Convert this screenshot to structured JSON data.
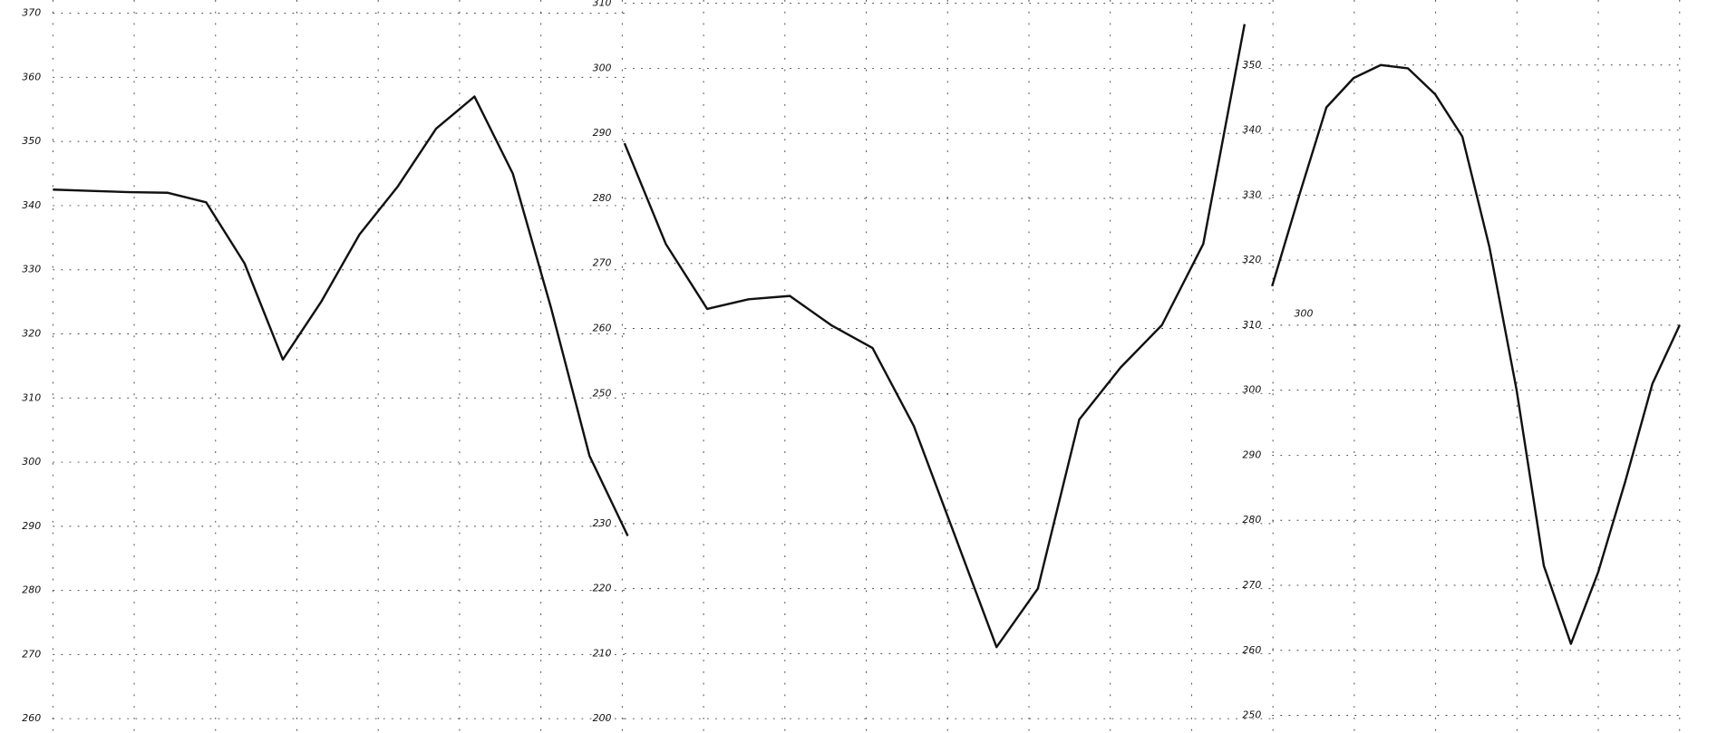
{
  "chart_data": [
    {
      "type": "line",
      "ylim": [
        260,
        370
      ],
      "yticks": [
        370,
        360,
        350,
        340,
        330,
        320,
        310,
        300,
        290,
        280,
        270,
        260
      ],
      "grid": true,
      "color": "#111111",
      "values": [
        342.5,
        342.3,
        342.1,
        342,
        340.5,
        331,
        316,
        325,
        335.5,
        343,
        352,
        357,
        345,
        324,
        301,
        288.5
      ]
    },
    {
      "type": "line",
      "ylim": [
        200,
        310
      ],
      "yticks": [
        310,
        300,
        290,
        280,
        270,
        260,
        250,
        230,
        220,
        210,
        200
      ],
      "grid": true,
      "color": "#111111",
      "values": [
        288.5,
        273,
        263,
        264.5,
        265,
        260.5,
        257,
        245,
        228,
        211,
        220,
        246,
        254,
        260.5,
        273,
        306.8
      ]
    },
    {
      "type": "line",
      "ylim": [
        250,
        360
      ],
      "yticks": [
        350,
        340,
        330,
        320,
        310,
        300,
        290,
        280,
        270,
        260,
        250
      ],
      "annotation": "300",
      "grid": true,
      "color": "#111111",
      "values": [
        316,
        330,
        343.5,
        348,
        350,
        349.5,
        345.5,
        339,
        322,
        300,
        273,
        261,
        272,
        286,
        301,
        310
      ]
    }
  ]
}
